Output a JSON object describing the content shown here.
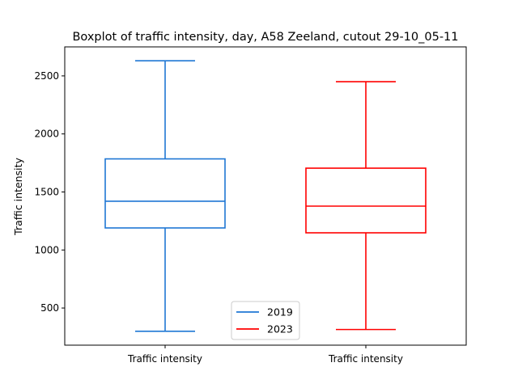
{
  "chart_data": {
    "type": "boxplot",
    "title": "Boxplot of traffic intensity, day, A58 Zeeland, cutout 29-10_05-11",
    "xlabel": "",
    "ylabel": "Traffic intensity",
    "categories": [
      "Traffic intensity",
      "Traffic intensity"
    ],
    "ylim": [
      180,
      2750
    ],
    "yticks": [
      500,
      1000,
      1500,
      2000,
      2500
    ],
    "grid": false,
    "legend_position": "lower-center",
    "series": [
      {
        "name": "2019",
        "color": "#1f77d4",
        "whisker_low": 300,
        "q1": 1190,
        "median": 1420,
        "q3": 1785,
        "whisker_high": 2630
      },
      {
        "name": "2023",
        "color": "#ff0000",
        "whisker_low": 315,
        "q1": 1148,
        "median": 1378,
        "q3": 1705,
        "whisker_high": 2450
      }
    ]
  }
}
